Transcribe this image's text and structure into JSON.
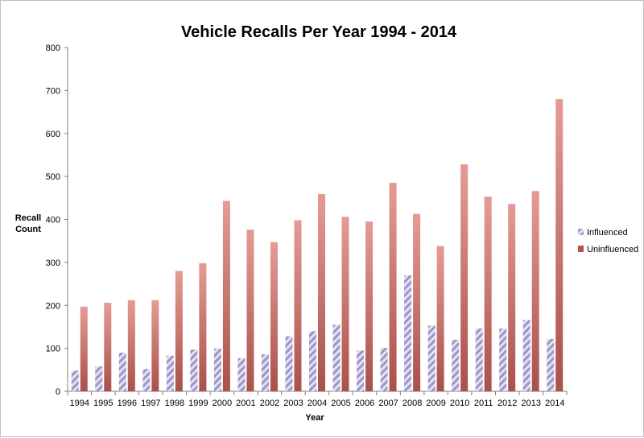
{
  "chart_data": {
    "type": "bar",
    "title": "Vehicle Recalls Per Year 1994 - 2014",
    "xlabel": "Year",
    "ylabel_line1": "Recall",
    "ylabel_line2": "Count",
    "ylim": [
      0,
      800
    ],
    "yticks": [
      "0",
      "100",
      "200",
      "300",
      "400",
      "500",
      "600",
      "700",
      "800"
    ],
    "categories": [
      "1994",
      "1995",
      "1996",
      "1997",
      "1998",
      "1999",
      "2000",
      "2001",
      "2002",
      "2003",
      "2004",
      "2005",
      "2006",
      "2007",
      "2008",
      "2009",
      "2010",
      "2011",
      "2012",
      "2013",
      "2014"
    ],
    "series": [
      {
        "name": "Influenced",
        "color": "#9b95c9",
        "pattern": "diagonal-hatch",
        "values": [
          48,
          58,
          90,
          52,
          83,
          97,
          100,
          77,
          86,
          128,
          140,
          155,
          95,
          101,
          270,
          153,
          120,
          146,
          146,
          166,
          122
        ]
      },
      {
        "name": "Uninfluenced",
        "color": "#c0504d",
        "pattern": "vertical-gradient",
        "values": [
          197,
          206,
          212,
          212,
          280,
          298,
          443,
          376,
          347,
          398,
          459,
          406,
          395,
          485,
          413,
          338,
          528,
          453,
          436,
          466,
          680
        ]
      }
    ],
    "grid": false,
    "legend_position": "right"
  }
}
